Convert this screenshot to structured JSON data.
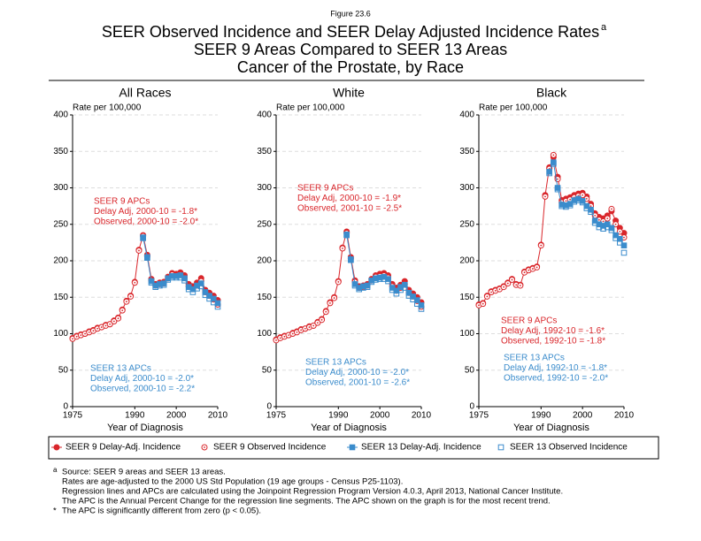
{
  "figure_label": "Figure 23.6",
  "title": "SEER Observed Incidence and SEER Delay Adjusted Incidence Rates",
  "title_superscript": "a",
  "subtitle": [
    "SEER 9 Areas Compared to SEER 13 Areas",
    "Cancer of the Prostate, by Race"
  ],
  "footnotes": {
    "source_marker": "a",
    "lines": [
      "Source: SEER 9 areas and SEER 13 areas.",
      "Rates are age-adjusted to the 2000 US Std Population (19 age groups - Census P25-1103).",
      "Regression lines and APCs are calculated using the Joinpoint Regression Program Version 4.0.3, April 2013, National Cancer Institute.",
      "The APC is the Annual Percent Change for the regression line segments. The APC shown on the graph is for the most recent trend."
    ],
    "star_marker": "*",
    "star_text": "The APC is significantly different from zero (p < 0.05)."
  },
  "chart_data": [
    {
      "type": "line",
      "title": "All Races",
      "x_label": "Year of Diagnosis",
      "y_label": "Rate per 100,000",
      "xlim": [
        1975,
        2010
      ],
      "xticks": [
        1975,
        1990,
        2000,
        2010
      ],
      "ylim": [
        0,
        400
      ],
      "yticks": [
        0,
        50,
        100,
        150,
        200,
        250,
        300,
        350,
        400
      ],
      "grid": true,
      "x": [
        1975,
        1976,
        1977,
        1978,
        1979,
        1980,
        1981,
        1982,
        1983,
        1984,
        1985,
        1986,
        1987,
        1988,
        1989,
        1990,
        1991,
        1992,
        1993,
        1994,
        1995,
        1996,
        1997,
        1998,
        1999,
        2000,
        2001,
        2002,
        2003,
        2004,
        2005,
        2006,
        2007,
        2008,
        2009,
        2010
      ],
      "annotations": [
        [
          "SEER 9 APCs",
          "Delay Adj, 2000-10 = -1.8*",
          "Observed, 2000-10 = -2.0*"
        ],
        [
          "SEER 13 APCs",
          "Delay Adj, 2000-10 = -2.0*",
          "Observed, 2000-10 = -2.2*"
        ]
      ],
      "series": [
        {
          "name": "SEER 9 Delay-Adj. Incidence",
          "color": "#d9262b",
          "marker": "filled-circle",
          "values": [
            94,
            97,
            99,
            100,
            103,
            105,
            108,
            109,
            112,
            113,
            118,
            122,
            133,
            145,
            152,
            171,
            215,
            235,
            208,
            175,
            168,
            170,
            171,
            178,
            183,
            182,
            184,
            180,
            168,
            165,
            170,
            176,
            160,
            156,
            152,
            146
          ]
        },
        {
          "name": "SEER 9 Observed Incidence",
          "color": "#d9262b",
          "marker": "open-circle",
          "values": [
            93,
            96,
            98,
            100,
            102,
            104,
            107,
            109,
            111,
            113,
            117,
            121,
            132,
            144,
            151,
            170,
            214,
            234,
            206,
            173,
            166,
            168,
            169,
            176,
            181,
            180,
            181,
            177,
            165,
            161,
            166,
            172,
            157,
            152,
            147,
            140
          ]
        },
        {
          "name": "SEER 13 Delay-Adj. Incidence",
          "color": "#3b8ccc",
          "marker": "filled-square",
          "x": [
            1992,
            1993,
            1994,
            1995,
            1996,
            1997,
            1998,
            1999,
            2000,
            2001,
            2002,
            2003,
            2004,
            2005,
            2006,
            2007,
            2008,
            2009,
            2010
          ],
          "values": [
            232,
            205,
            172,
            166,
            168,
            169,
            176,
            179,
            179,
            180,
            176,
            164,
            161,
            166,
            169,
            157,
            152,
            148,
            142
          ]
        },
        {
          "name": "SEER 13 Observed Incidence",
          "color": "#3b8ccc",
          "marker": "open-square",
          "x": [
            1992,
            1993,
            1994,
            1995,
            1996,
            1997,
            1998,
            1999,
            2000,
            2001,
            2002,
            2003,
            2004,
            2005,
            2006,
            2007,
            2008,
            2009,
            2010
          ],
          "values": [
            231,
            204,
            170,
            164,
            166,
            167,
            174,
            177,
            177,
            177,
            173,
            161,
            157,
            162,
            165,
            153,
            148,
            143,
            137
          ]
        }
      ]
    },
    {
      "type": "line",
      "title": "White",
      "x_label": "Year of Diagnosis",
      "y_label": "Rate per 100,000",
      "xlim": [
        1975,
        2010
      ],
      "xticks": [
        1975,
        1990,
        2000,
        2010
      ],
      "ylim": [
        0,
        400
      ],
      "yticks": [
        0,
        50,
        100,
        150,
        200,
        250,
        300,
        350,
        400
      ],
      "grid": true,
      "x": [
        1975,
        1976,
        1977,
        1978,
        1979,
        1980,
        1981,
        1982,
        1983,
        1984,
        1985,
        1986,
        1987,
        1988,
        1989,
        1990,
        1991,
        1992,
        1993,
        1994,
        1995,
        1996,
        1997,
        1998,
        1999,
        2000,
        2001,
        2002,
        2003,
        2004,
        2005,
        2006,
        2007,
        2008,
        2009,
        2010
      ],
      "annotations": [
        [
          "SEER 9 APCs",
          "Delay Adj, 2000-10 = -1.9*",
          "Observed, 2001-10 = -2.5*"
        ],
        [
          "SEER 13 APCs",
          "Delay Adj, 2000-10 = -2.0*",
          "Observed, 2001-10 = -2.6*"
        ]
      ],
      "series": [
        {
          "name": "SEER 9 Delay-Adj. Incidence",
          "color": "#d9262b",
          "marker": "filled-circle",
          "values": [
            92,
            95,
            97,
            98,
            101,
            103,
            106,
            107,
            110,
            111,
            116,
            120,
            131,
            143,
            150,
            172,
            218,
            240,
            205,
            173,
            165,
            166,
            168,
            175,
            180,
            182,
            183,
            180,
            168,
            163,
            167,
            172,
            160,
            155,
            150,
            143
          ]
        },
        {
          "name": "SEER 9 Observed Incidence",
          "color": "#d9262b",
          "marker": "open-circle",
          "values": [
            91,
            94,
            96,
            98,
            100,
            102,
            105,
            107,
            109,
            111,
            115,
            119,
            130,
            142,
            149,
            171,
            217,
            238,
            203,
            171,
            163,
            164,
            166,
            173,
            178,
            179,
            180,
            177,
            165,
            159,
            163,
            168,
            156,
            151,
            145,
            137
          ]
        },
        {
          "name": "SEER 13 Delay-Adj. Incidence",
          "color": "#3b8ccc",
          "marker": "filled-square",
          "x": [
            1992,
            1993,
            1994,
            1995,
            1996,
            1997,
            1998,
            1999,
            2000,
            2001,
            2002,
            2003,
            2004,
            2005,
            2006,
            2007,
            2008,
            2009,
            2010
          ],
          "values": [
            236,
            202,
            168,
            163,
            165,
            166,
            173,
            176,
            177,
            178,
            175,
            163,
            159,
            164,
            167,
            156,
            151,
            146,
            139
          ]
        },
        {
          "name": "SEER 13 Observed Incidence",
          "color": "#3b8ccc",
          "marker": "open-square",
          "x": [
            1992,
            1993,
            1994,
            1995,
            1996,
            1997,
            1998,
            1999,
            2000,
            2001,
            2002,
            2003,
            2004,
            2005,
            2006,
            2007,
            2008,
            2009,
            2010
          ],
          "values": [
            235,
            201,
            166,
            161,
            163,
            164,
            171,
            174,
            175,
            175,
            172,
            160,
            155,
            160,
            163,
            152,
            147,
            141,
            134
          ]
        }
      ]
    },
    {
      "type": "line",
      "title": "Black",
      "x_label": "Year of Diagnosis",
      "y_label": "Rate per 100,000",
      "xlim": [
        1975,
        2010
      ],
      "xticks": [
        1975,
        1990,
        2000,
        2010
      ],
      "ylim": [
        0,
        400
      ],
      "yticks": [
        0,
        50,
        100,
        150,
        200,
        250,
        300,
        350,
        400
      ],
      "grid": true,
      "x": [
        1975,
        1976,
        1977,
        1978,
        1979,
        1980,
        1981,
        1982,
        1983,
        1984,
        1985,
        1986,
        1987,
        1988,
        1989,
        1990,
        1991,
        1992,
        1993,
        1994,
        1995,
        1996,
        1997,
        1998,
        1999,
        2000,
        2001,
        2002,
        2003,
        2004,
        2005,
        2006,
        2007,
        2008,
        2009,
        2010
      ],
      "annotations": [
        [
          "SEER 9 APCs",
          "Delay Adj, 1992-10 = -1.6*",
          "Observed, 1992-10 = -1.8*"
        ],
        [
          "SEER 13 APCs",
          "Delay Adj, 1992-10 = -1.8*",
          "Observed, 1992-10 = -2.0*"
        ]
      ],
      "series": [
        {
          "name": "SEER 9 Delay-Adj. Incidence",
          "color": "#d9262b",
          "marker": "filled-circle",
          "values": [
            140,
            142,
            152,
            158,
            160,
            162,
            165,
            170,
            175,
            168,
            167,
            185,
            188,
            190,
            192,
            222,
            290,
            328,
            342,
            315,
            283,
            285,
            287,
            290,
            292,
            293,
            288,
            278,
            265,
            260,
            258,
            262,
            268,
            255,
            245,
            238
          ]
        },
        {
          "name": "SEER 9 Observed Incidence",
          "color": "#d9262b",
          "marker": "open-circle",
          "values": [
            139,
            141,
            151,
            157,
            159,
            161,
            164,
            169,
            174,
            167,
            166,
            184,
            187,
            189,
            191,
            221,
            288,
            326,
            345,
            312,
            280,
            282,
            284,
            287,
            289,
            290,
            285,
            275,
            262,
            256,
            254,
            258,
            271,
            250,
            240,
            232
          ]
        },
        {
          "name": "SEER 13 Delay-Adj. Incidence",
          "color": "#3b8ccc",
          "marker": "filled-square",
          "x": [
            1992,
            1993,
            1994,
            1995,
            1996,
            1997,
            1998,
            1999,
            2000,
            2001,
            2002,
            2003,
            2004,
            2005,
            2006,
            2007,
            2008,
            2009,
            2010
          ],
          "values": [
            322,
            335,
            300,
            277,
            276,
            278,
            283,
            285,
            282,
            275,
            270,
            255,
            250,
            248,
            250,
            245,
            235,
            230,
            221
          ]
        },
        {
          "name": "SEER 13 Observed Incidence",
          "color": "#3b8ccc",
          "marker": "open-square",
          "x": [
            1992,
            1993,
            1994,
            1995,
            1996,
            1997,
            1998,
            1999,
            2000,
            2001,
            2002,
            2003,
            2004,
            2005,
            2006,
            2007,
            2008,
            2009,
            2010
          ],
          "values": [
            320,
            333,
            298,
            275,
            274,
            276,
            281,
            283,
            280,
            272,
            267,
            252,
            246,
            244,
            246,
            242,
            231,
            225,
            211
          ]
        }
      ]
    }
  ]
}
